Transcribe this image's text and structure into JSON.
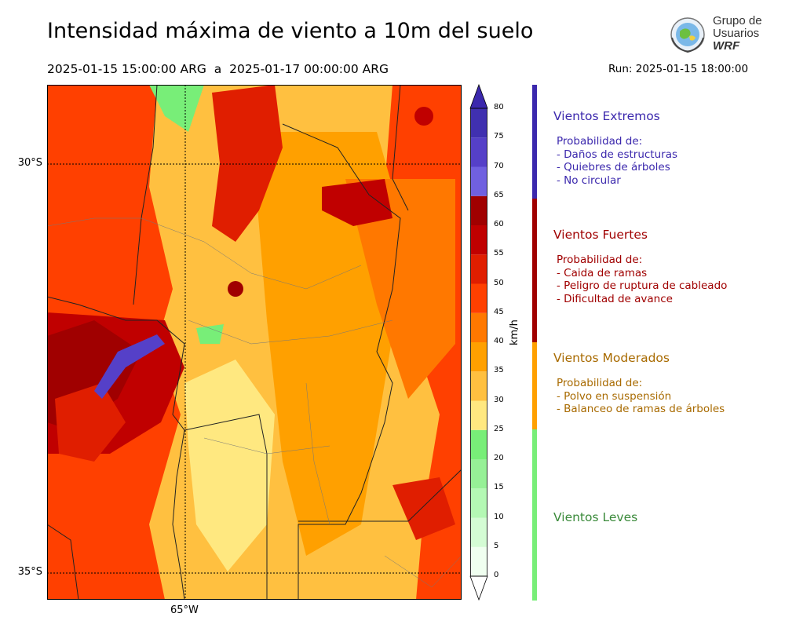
{
  "title": "Intensidad máxima de viento a 10m del suelo",
  "period": "2025-01-15 15:00:00 ARG  a  2025-01-17 00:00:00 ARG",
  "run": "Run: 2025-01-15 18:00:00",
  "logo": {
    "text_line1": "Grupo de",
    "text_line2": "Usuarios",
    "text_line3": "WRF"
  },
  "map": {
    "lat_labels": [
      "30°S",
      "35°S"
    ],
    "lon_labels": [
      "65°W"
    ]
  },
  "colorbar": {
    "unit": "km/h",
    "ticks": [
      "0",
      "5",
      "10",
      "15",
      "20",
      "25",
      "30",
      "35",
      "40",
      "45",
      "50",
      "55",
      "60",
      "65",
      "70",
      "75",
      "80"
    ],
    "colors": [
      "#f0fff0",
      "#d4fcd4",
      "#b4f8b4",
      "#96f096",
      "#78ee78",
      "#ffe880",
      "#ffc040",
      "#ffa000",
      "#ff7800",
      "#ff4000",
      "#e01e00",
      "#c00000",
      "#a00000",
      "#7060e0",
      "#5540c8",
      "#4030b0"
    ]
  },
  "categories": [
    {
      "title": "Vientos Extremos",
      "color": "#3b28ad",
      "lines": [
        "Probabilidad de:",
        "- Daños de estructuras",
        "- Quiebres de árboles",
        "- No circular"
      ]
    },
    {
      "title": "Vientos Fuertes",
      "color": "#a00000",
      "lines": [
        "Probabilidad de:",
        "- Caida de ramas",
        "- Peligro de ruptura de cableado",
        "- Dificultad de avance"
      ]
    },
    {
      "title": "Vientos Moderados",
      "color": "#a86a00",
      "lines": [
        "Probabilidad de:",
        "- Polvo en suspensión",
        "- Balanceo de ramas de árboles"
      ]
    },
    {
      "title": "Vientos Leves",
      "color": "#3a8a3a",
      "lines": []
    }
  ]
}
